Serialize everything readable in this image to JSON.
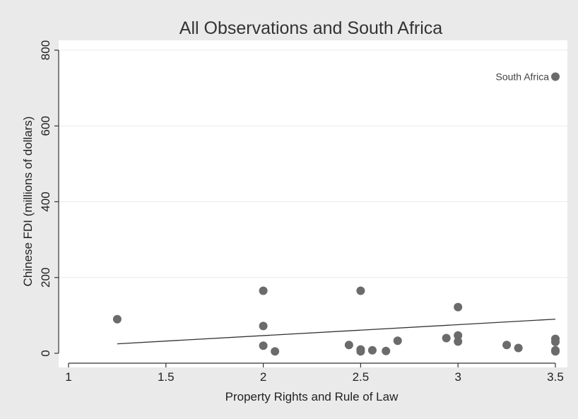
{
  "chart_data": {
    "type": "scatter",
    "title": "All Observations and South Africa",
    "xlabel": "Property Rights and Rule of Law",
    "ylabel": "Chinese FDI (millions of dollars)",
    "xlim": [
      1,
      3.5
    ],
    "ylim": [
      0,
      800
    ],
    "xticks": [
      1,
      1.5,
      2,
      2.5,
      3,
      3.5
    ],
    "xtick_labels": [
      "1",
      "1.5",
      "2",
      "2.5",
      "3",
      "3.5"
    ],
    "yticks": [
      0,
      200,
      400,
      600,
      800
    ],
    "ytick_labels": [
      "0",
      "200",
      "400",
      "600",
      "800"
    ],
    "grid": "horizontal",
    "legend": "none",
    "marker_color": "#6b6b6b",
    "line_color": "#333333",
    "points": [
      {
        "x": 1.25,
        "y": 90
      },
      {
        "x": 2.0,
        "y": 165
      },
      {
        "x": 2.0,
        "y": 72
      },
      {
        "x": 2.0,
        "y": 20
      },
      {
        "x": 2.06,
        "y": 5
      },
      {
        "x": 2.44,
        "y": 22
      },
      {
        "x": 2.5,
        "y": 165
      },
      {
        "x": 2.5,
        "y": 10
      },
      {
        "x": 2.5,
        "y": 5
      },
      {
        "x": 2.56,
        "y": 8
      },
      {
        "x": 2.63,
        "y": 6
      },
      {
        "x": 2.69,
        "y": 33
      },
      {
        "x": 2.94,
        "y": 40
      },
      {
        "x": 3.0,
        "y": 122
      },
      {
        "x": 3.0,
        "y": 47
      },
      {
        "x": 3.0,
        "y": 31
      },
      {
        "x": 3.25,
        "y": 22
      },
      {
        "x": 3.31,
        "y": 14
      },
      {
        "x": 3.5,
        "y": 38
      },
      {
        "x": 3.5,
        "y": 30
      },
      {
        "x": 3.5,
        "y": 8
      },
      {
        "x": 3.5,
        "y": 5
      },
      {
        "x": 3.5,
        "y": 730,
        "label": "South Africa"
      }
    ],
    "fit_line": {
      "x": [
        1.25,
        3.5
      ],
      "y": [
        25,
        90
      ]
    }
  }
}
